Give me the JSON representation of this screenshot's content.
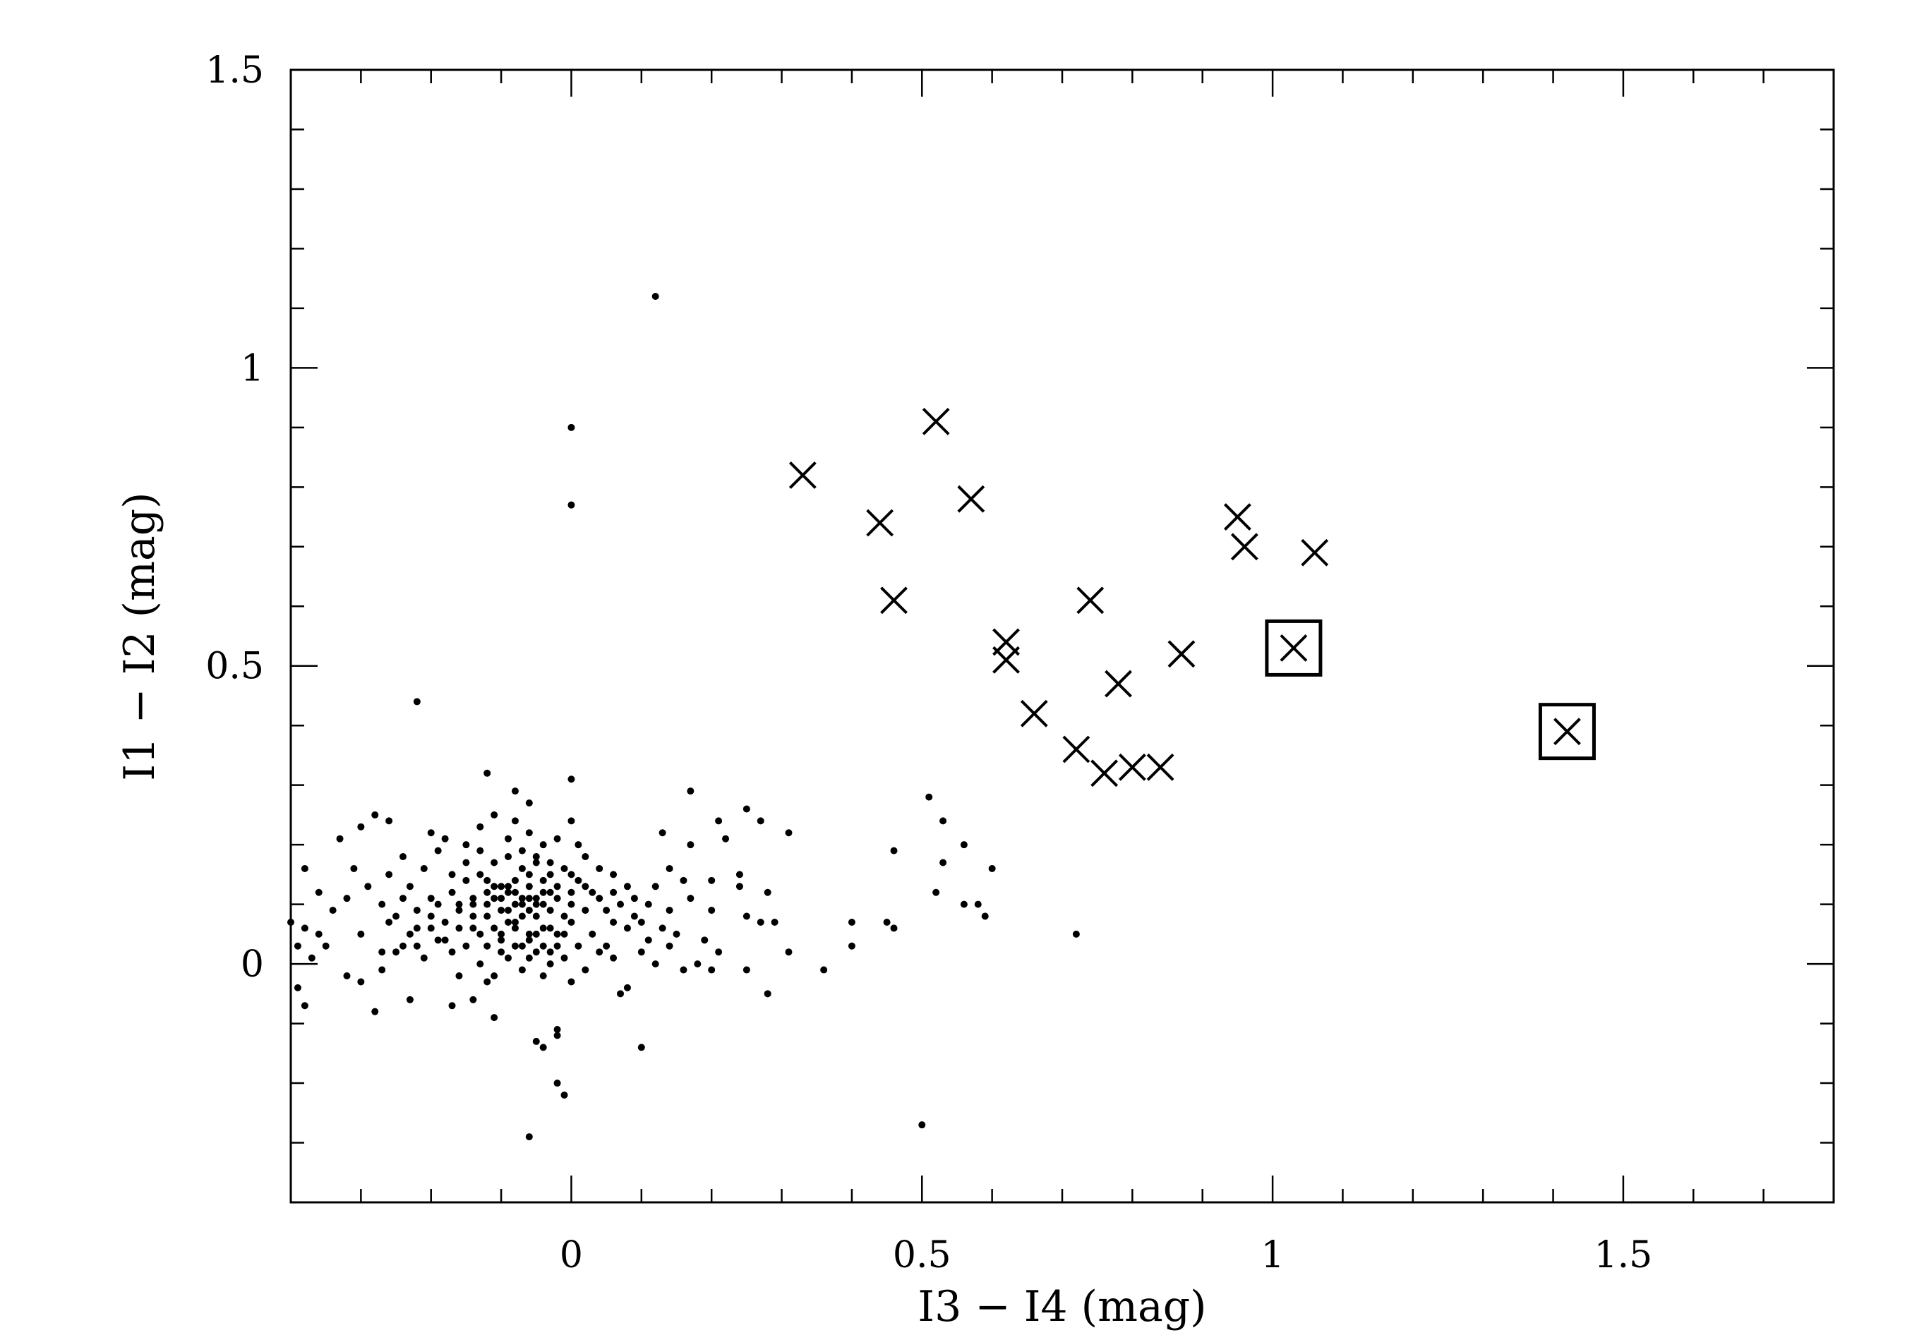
{
  "chart_data": {
    "type": "scatter",
    "title": "",
    "xlabel": "I3 − I4 (mag)",
    "ylabel": "I1 − I2 (mag)",
    "xlim": [
      -0.4,
      1.8
    ],
    "ylim": [
      -0.4,
      1.5
    ],
    "x_ticks": [
      0,
      0.5,
      1,
      1.5
    ],
    "x_tick_labels": [
      "0",
      "0.5",
      "1",
      "1.5"
    ],
    "x_minor_step": 0.1,
    "y_ticks": [
      0,
      0.5,
      1,
      1.5
    ],
    "y_tick_labels": [
      "0",
      "0.5",
      "1",
      "1.5"
    ],
    "y_minor_step": 0.1,
    "grid": false,
    "legend": "none",
    "colors": {
      "ink": "#000000",
      "background": "#ffffff"
    },
    "series": [
      {
        "marker": "dot",
        "points": [
          [
            0.12,
            1.12
          ],
          [
            0,
            0.9
          ],
          [
            0,
            0.77
          ],
          [
            -0.22,
            0.44
          ],
          [
            -0.12,
            0.32
          ],
          [
            -0.08,
            0.29
          ],
          [
            -0.06,
            0.27
          ],
          [
            0,
            0.31
          ],
          [
            0.17,
            0.29
          ],
          [
            0.25,
            0.26
          ],
          [
            0.27,
            0.24
          ],
          [
            0.31,
            0.22
          ],
          [
            0.21,
            0.24
          ],
          [
            0.22,
            0.21
          ],
          [
            0.17,
            0.2
          ],
          [
            0.13,
            0.22
          ],
          [
            0.14,
            0.16
          ],
          [
            0.16,
            0.14
          ],
          [
            0.2,
            0.14
          ],
          [
            0.24,
            0.15
          ],
          [
            0.24,
            0.13
          ],
          [
            0.28,
            0.12
          ],
          [
            0.27,
            0.07
          ],
          [
            0.29,
            0.07
          ],
          [
            0.25,
            0.08
          ],
          [
            0.2,
            0.09
          ],
          [
            0.17,
            0.11
          ],
          [
            0.14,
            0.09
          ],
          [
            0.15,
            0.05
          ],
          [
            0.19,
            0.04
          ],
          [
            0.21,
            0.02
          ],
          [
            0.2,
            -0.01
          ],
          [
            0.18,
            0.0
          ],
          [
            0.16,
            -0.01
          ],
          [
            0.14,
            0.03
          ],
          [
            0.1,
            0.02
          ],
          [
            0.08,
            -0.04
          ],
          [
            0.07,
            -0.05
          ],
          [
            0.1,
            -0.14
          ],
          [
            0.25,
            -0.01
          ],
          [
            0.28,
            -0.05
          ],
          [
            0.31,
            0.02
          ],
          [
            0.36,
            -0.01
          ],
          [
            0.4,
            0.03
          ],
          [
            0.4,
            0.07
          ],
          [
            0.45,
            0.07
          ],
          [
            0.46,
            0.06
          ],
          [
            0.46,
            0.19
          ],
          [
            0.51,
            0.28
          ],
          [
            0.53,
            0.24
          ],
          [
            0.56,
            0.2
          ],
          [
            0.53,
            0.17
          ],
          [
            0.6,
            0.16
          ],
          [
            0.52,
            0.12
          ],
          [
            0.56,
            0.1
          ],
          [
            0.58,
            0.1
          ],
          [
            0.59,
            0.08
          ],
          [
            0.72,
            0.05
          ],
          [
            0.5,
            -0.27
          ],
          [
            -0.02,
            -0.2
          ],
          [
            -0.01,
            -0.22
          ],
          [
            -0.06,
            -0.29
          ],
          [
            -0.05,
            -0.13
          ],
          [
            -0.04,
            -0.14
          ],
          [
            -0.02,
            -0.11
          ],
          [
            -0.02,
            -0.12
          ],
          [
            -0.11,
            -0.09
          ],
          [
            -0.14,
            -0.06
          ],
          [
            -0.17,
            -0.07
          ],
          [
            -0.23,
            -0.06
          ],
          [
            -0.28,
            -0.08
          ],
          [
            -0.3,
            -0.03
          ],
          [
            -0.32,
            -0.02
          ],
          [
            -0.38,
            -0.07
          ],
          [
            -0.39,
            -0.04
          ],
          [
            -0.37,
            0.01
          ],
          [
            -0.39,
            0.03
          ],
          [
            -0.36,
            0.05
          ],
          [
            -0.38,
            0.06
          ],
          [
            -0.4,
            0.07
          ],
          [
            -0.36,
            0.12
          ],
          [
            -0.38,
            0.16
          ],
          [
            -0.31,
            0.16
          ],
          [
            -0.33,
            0.21
          ],
          [
            -0.3,
            0.23
          ],
          [
            -0.28,
            0.25
          ],
          [
            -0.26,
            0.24
          ],
          [
            -0.29,
            0.13
          ],
          [
            -0.27,
            0.1
          ],
          [
            -0.26,
            0.07
          ],
          [
            -0.3,
            0.05
          ],
          [
            -0.27,
            0.02
          ],
          [
            -0.25,
            0.02
          ],
          [
            -0.27,
            -0.01
          ],
          [
            -0.24,
            0.03
          ],
          [
            -0.22,
            0.06
          ],
          [
            -0.2,
            0.11
          ],
          [
            -0.23,
            0.13
          ],
          [
            -0.21,
            0.16
          ],
          [
            -0.19,
            0.19
          ],
          [
            -0.18,
            0.21
          ],
          [
            -0.2,
            0.22
          ],
          [
            -0.15,
            0.2
          ],
          [
            -0.13,
            0.23
          ],
          [
            -0.11,
            0.25
          ],
          [
            -0.08,
            0.24
          ],
          [
            -0.09,
            0.21
          ],
          [
            -0.06,
            0.22
          ],
          [
            -0.04,
            0.2
          ],
          [
            -0.02,
            0.21
          ],
          [
            0,
            0.24
          ],
          [
            0.01,
            0.2
          ],
          [
            0.02,
            0.18
          ],
          [
            0.04,
            0.16
          ],
          [
            0.06,
            0.15
          ],
          [
            0.08,
            0.13
          ],
          [
            0.09,
            0.11
          ],
          [
            0.11,
            0.1
          ],
          [
            0.1,
            0.07
          ],
          [
            0.08,
            0.06
          ],
          [
            0.06,
            0.07
          ],
          [
            0.05,
            0.03
          ],
          [
            0.06,
            0.01
          ],
          [
            0.04,
            0.02
          ],
          [
            0.02,
            -0.01
          ],
          [
            0.01,
            0.03
          ],
          [
            -0.01,
            0.01
          ],
          [
            -0.03,
            0.0
          ],
          [
            -0.05,
            0.02
          ],
          [
            -0.07,
            -0.01
          ],
          [
            -0.09,
            0.01
          ],
          [
            -0.11,
            -0.02
          ],
          [
            -0.13,
            0.0
          ],
          [
            -0.15,
            0.03
          ],
          [
            -0.17,
            0.02
          ],
          [
            -0.19,
            0.04
          ],
          [
            -0.21,
            0.01
          ],
          [
            -0.23,
            0.05
          ],
          [
            -0.25,
            0.08
          ],
          [
            -0.22,
            0.09
          ],
          [
            -0.18,
            0.07
          ],
          [
            -0.16,
            0.09
          ],
          [
            -0.14,
            0.06
          ],
          [
            -0.12,
            0.08
          ],
          [
            -0.1,
            0.05
          ],
          [
            -0.08,
            0.07
          ],
          [
            -0.06,
            0.04
          ],
          [
            -0.04,
            0.06
          ],
          [
            -0.02,
            0.05
          ],
          [
            0,
            0.07
          ],
          [
            0.02,
            0.09
          ],
          [
            0.03,
            0.12
          ],
          [
            0.01,
            0.14
          ],
          [
            -0.01,
            0.16
          ],
          [
            -0.03,
            0.15
          ],
          [
            -0.05,
            0.17
          ],
          [
            -0.07,
            0.16
          ],
          [
            -0.09,
            0.18
          ],
          [
            -0.11,
            0.17
          ],
          [
            -0.13,
            0.15
          ],
          [
            -0.15,
            0.14
          ],
          [
            -0.17,
            0.12
          ],
          [
            -0.16,
            0.1
          ],
          [
            -0.14,
            0.11
          ],
          [
            -0.12,
            0.12
          ],
          [
            -0.1,
            0.13
          ],
          [
            -0.08,
            0.14
          ],
          [
            -0.06,
            0.13
          ],
          [
            -0.04,
            0.12
          ],
          [
            -0.02,
            0.11
          ],
          [
            -0.04,
            0.1
          ],
          [
            -0.06,
            0.09
          ],
          [
            -0.08,
            0.1
          ],
          [
            -0.1,
            0.09
          ],
          [
            -0.12,
            0.1
          ],
          [
            -0.11,
            0.11
          ],
          [
            -0.09,
            0.12
          ],
          [
            -0.07,
            0.11
          ],
          [
            -0.05,
            0.11
          ],
          [
            -0.03,
            0.09
          ],
          [
            -0.05,
            0.08
          ],
          [
            -0.07,
            0.08
          ],
          [
            -0.09,
            0.07
          ],
          [
            -0.11,
            0.06
          ],
          [
            -0.13,
            0.05
          ],
          [
            -0.12,
            0.03
          ],
          [
            -0.1,
            0.02
          ],
          [
            -0.08,
            0.03
          ],
          [
            -0.06,
            0.01
          ],
          [
            -0.04,
            0.03
          ],
          [
            -0.03,
            0.06
          ],
          [
            -0.01,
            0.08
          ],
          [
            0.0,
            0.1
          ],
          [
            -0.02,
            0.13
          ],
          [
            -0.04,
            0.14
          ],
          [
            -0.06,
            0.15
          ],
          [
            -0.08,
            0.12
          ],
          [
            -0.1,
            0.11
          ],
          [
            -0.12,
            0.14
          ],
          [
            -0.14,
            0.08
          ],
          [
            -0.16,
            0.06
          ],
          [
            -0.18,
            0.04
          ],
          [
            -0.2,
            0.06
          ],
          [
            -0.22,
            0.03
          ],
          [
            -0.17,
            0.15
          ],
          [
            -0.15,
            0.17
          ],
          [
            -0.13,
            0.19
          ],
          [
            -0.07,
            0.19
          ],
          [
            -0.05,
            0.18
          ],
          [
            -0.03,
            0.17
          ],
          [
            0.03,
            0.05
          ],
          [
            0.05,
            0.09
          ],
          [
            0.07,
            0.1
          ],
          [
            0.09,
            0.08
          ],
          [
            0.11,
            0.04
          ],
          [
            0.12,
            0.0
          ],
          [
            0.13,
            0.06
          ],
          [
            -0.34,
            0.09
          ],
          [
            -0.35,
            0.03
          ],
          [
            -0.32,
            0.11
          ],
          [
            -0.24,
            0.11
          ],
          [
            -0.06,
            0.05
          ],
          [
            -0.08,
            0.06
          ],
          [
            -0.1,
            0.04
          ],
          [
            -0.07,
            0.03
          ],
          [
            -0.05,
            0.05
          ],
          [
            -0.09,
            0.09
          ],
          [
            -0.07,
            0.1
          ],
          [
            -0.05,
            0.1
          ],
          [
            -0.09,
            0.13
          ],
          [
            -0.06,
            0.11
          ],
          [
            -0.11,
            0.13
          ],
          [
            -0.03,
            0.12
          ],
          [
            -0.14,
            0.1
          ],
          [
            0.04,
            0.11
          ],
          [
            0.06,
            0.12
          ],
          [
            0.0,
            0.12
          ],
          [
            -0.01,
            0.05
          ],
          [
            -0.02,
            0.03
          ],
          [
            -0.03,
            0.02
          ],
          [
            -0.19,
            0.1
          ],
          [
            -0.2,
            0.08
          ],
          [
            -0.04,
            -0.02
          ],
          [
            0.0,
            -0.03
          ],
          [
            -0.12,
            -0.03
          ],
          [
            -0.16,
            -0.02
          ],
          [
            0.0,
            0.15
          ],
          [
            0.02,
            0.13
          ],
          [
            -0.24,
            0.18
          ],
          [
            -0.26,
            0.15
          ],
          [
            0.12,
            0.13
          ]
        ]
      },
      {
        "marker": "cross",
        "points": [
          [
            0.33,
            0.82
          ],
          [
            0.52,
            0.91
          ],
          [
            0.44,
            0.74
          ],
          [
            0.57,
            0.78
          ],
          [
            0.46,
            0.61
          ],
          [
            0.62,
            0.54
          ],
          [
            0.62,
            0.51
          ],
          [
            0.74,
            0.61
          ],
          [
            0.87,
            0.52
          ],
          [
            0.78,
            0.47
          ],
          [
            0.66,
            0.42
          ],
          [
            0.72,
            0.36
          ],
          [
            0.76,
            0.32
          ],
          [
            0.8,
            0.33
          ],
          [
            0.84,
            0.33
          ],
          [
            0.95,
            0.75
          ],
          [
            0.96,
            0.7
          ],
          [
            1.06,
            0.69
          ]
        ]
      },
      {
        "marker": "boxed-cross",
        "points": [
          [
            1.03,
            0.53
          ],
          [
            1.42,
            0.39
          ]
        ]
      }
    ]
  }
}
